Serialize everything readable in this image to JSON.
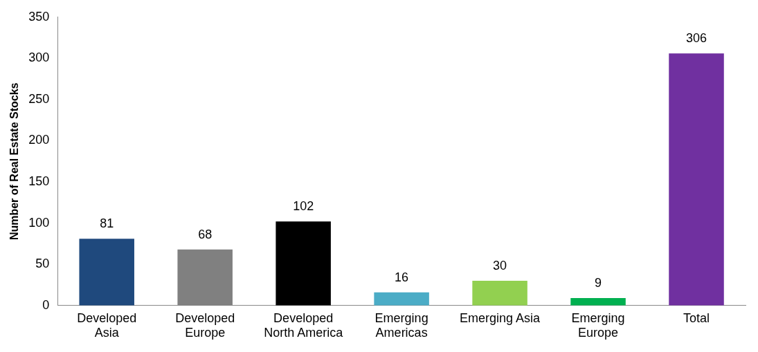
{
  "chart_data": {
    "type": "bar",
    "ylabel": "Number of Real Estate Stocks",
    "categories": [
      "Developed\nAsia",
      "Developed\nEurope",
      "Developed\nNorth America",
      "Emerging\nAmericas",
      "Emerging Asia",
      "Emerging\nEurope",
      "Total"
    ],
    "values": [
      81,
      68,
      102,
      16,
      30,
      9,
      306
    ],
    "colors": [
      "#1f497d",
      "#808080",
      "#000000",
      "#4bacc6",
      "#92d050",
      "#00b050",
      "#7030a0"
    ],
    "ylim": [
      0,
      350
    ],
    "yticks": [
      0,
      50,
      100,
      150,
      200,
      250,
      300,
      350
    ],
    "grid": false,
    "legend": false,
    "data_labels": true
  }
}
